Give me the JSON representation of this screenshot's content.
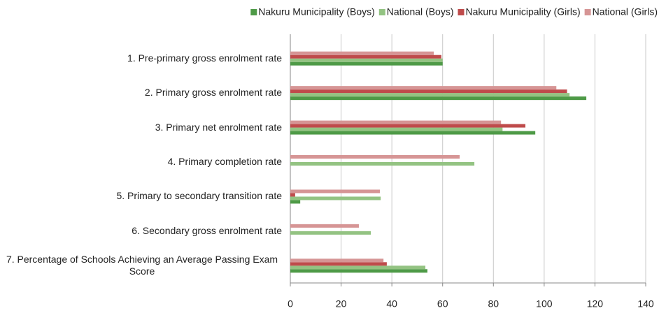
{
  "chart_data": {
    "type": "hbar",
    "categories": [
      "1. Pre-primary gross enrolment rate",
      "2. Primary gross enrolment rate",
      "3. Primary net enrolment rate",
      "4. Primary completion rate",
      "5. Primary to secondary transition rate",
      "6. Secondary gross enrolment rate",
      "7. Percentage of Schools Achieving an Average Passing Exam Score"
    ],
    "series": [
      {
        "name": "Nakuru Municipality (Boys)",
        "color": "#4e9a47",
        "values": [
          60,
          116.6,
          96.5,
          null,
          3.9,
          null,
          54
        ]
      },
      {
        "name": "National (Boys)",
        "color": "#93c382",
        "values": [
          60,
          110,
          83.6,
          72.5,
          35.6,
          31.7,
          53.2
        ]
      },
      {
        "name": "Nakuru Municipality (Girls)",
        "color": "#bf4b4b",
        "values": [
          59.5,
          109,
          92.6,
          null,
          1.9,
          null,
          38
        ]
      },
      {
        "name": "National (Girls)",
        "color": "#d69595",
        "values": [
          56.5,
          104.8,
          83,
          66.7,
          35.3,
          27,
          36.7
        ]
      }
    ],
    "xlim": [
      0,
      140
    ],
    "xticks": [
      0,
      20,
      40,
      60,
      80,
      100,
      120,
      140
    ],
    "grid": true
  }
}
